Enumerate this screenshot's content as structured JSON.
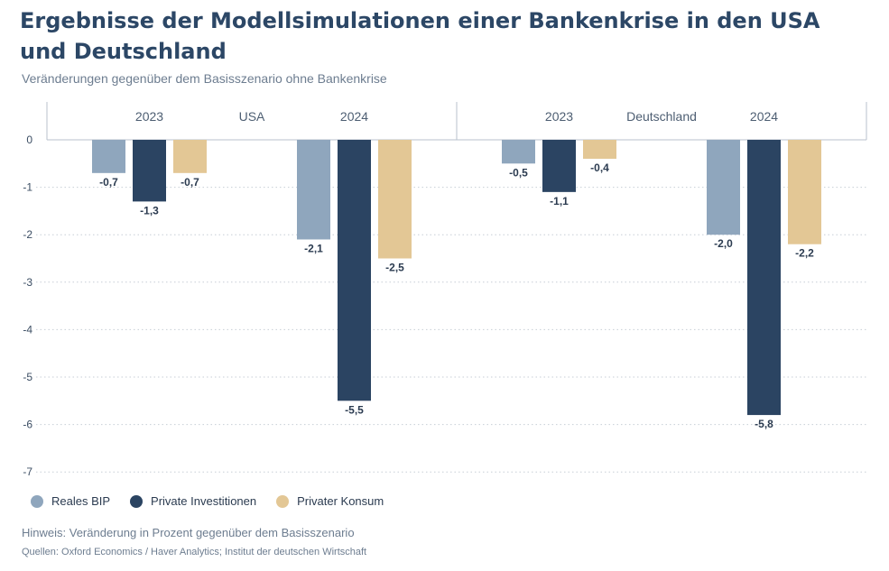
{
  "title": "Ergebnisse der Modellsimulationen einer Bankenkrise in den USA und Deutschland",
  "subtitle": "Veränderungen gegenüber dem Basisszenario ohne Bankenkrise",
  "note": "Hinweis:  Veränderung in Prozent gegenüber dem Basisszenario",
  "source": "Quellen: Oxford Economics / Haver Analytics; Institut der deutschen Wirtschaft",
  "chart_data": {
    "type": "bar",
    "ylim": [
      -7,
      0
    ],
    "yticks": [
      0,
      -1,
      -2,
      -3,
      -4,
      -5,
      -6,
      -7
    ],
    "grid": true,
    "legend_position": "bottom-left",
    "panels": [
      {
        "name": "USA",
        "groups": [
          {
            "label": "2023",
            "values": [
              -0.7,
              -1.3,
              -0.7
            ],
            "labels": [
              "-0,7",
              "-1,3",
              "-0,7"
            ]
          },
          {
            "label": "2024",
            "values": [
              -2.1,
              -5.5,
              -2.5
            ],
            "labels": [
              "-2,1",
              "-5,5",
              "-2,5"
            ]
          }
        ]
      },
      {
        "name": "Deutschland",
        "groups": [
          {
            "label": "2023",
            "values": [
              -0.5,
              -1.1,
              -0.4
            ],
            "labels": [
              "-0,5",
              "-1,1",
              "-0,4"
            ]
          },
          {
            "label": "2024",
            "values": [
              -2.0,
              -5.8,
              -2.2
            ],
            "labels": [
              "-2,0",
              "-5,8",
              "-2,2"
            ]
          }
        ]
      }
    ],
    "series": [
      {
        "name": "Reales BIP",
        "color": "#8fa6bd"
      },
      {
        "name": "Private Investitionen",
        "color": "#2b4462"
      },
      {
        "name": "Privater Konsum",
        "color": "#e3c795"
      }
    ]
  }
}
